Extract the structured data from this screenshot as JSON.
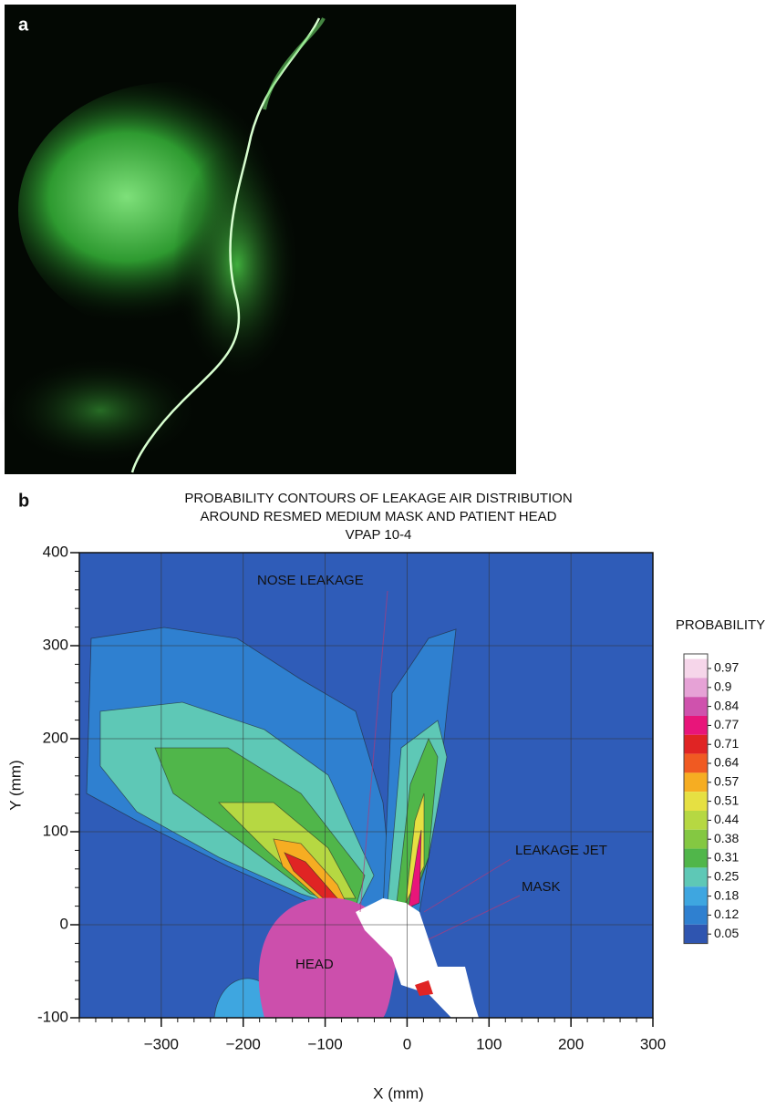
{
  "panel_a": {
    "label": "a"
  },
  "chart_data": {
    "type": "contour",
    "panel_label": "b",
    "title": [
      "PROBABILITY CONTOURS OF LEAKAGE AIR DISTRIBUTION",
      "AROUND RESMED MEDIUM MASK AND PATIENT HEAD",
      "VPAP 10-4"
    ],
    "x_label": "X (mm)",
    "y_label": "Y (mm)",
    "xlim": [
      -400,
      300
    ],
    "ylim": [
      -100,
      400
    ],
    "xticks": [
      {
        "value": -300,
        "label": "−300"
      },
      {
        "value": -200,
        "label": "−200"
      },
      {
        "value": -100,
        "label": "−100"
      },
      0,
      100,
      200,
      300
    ],
    "yticks": [
      -100,
      0,
      100,
      200,
      300,
      400
    ],
    "grid": true,
    "annotations": [
      "NOSE LEAKAGE",
      "LEAKAGE JET",
      "MASK",
      "HEAD"
    ],
    "colorbar": {
      "label": "PROBABILITY",
      "levels": [
        0.97,
        0.9,
        0.84,
        0.77,
        0.71,
        0.64,
        0.57,
        0.51,
        0.44,
        0.38,
        0.31,
        0.25,
        0.18,
        0.12,
        0.05
      ],
      "colors": [
        "#f6d6ea",
        "#e6a2d6",
        "#cf52ad",
        "#e8157a",
        "#e02424",
        "#f05a22",
        "#f6ad22",
        "#e6e042",
        "#b6d842",
        "#84c842",
        "#50b64a",
        "#5ec8b6",
        "#3ea6e0",
        "#2f80d0",
        "#2f55b0"
      ]
    }
  }
}
